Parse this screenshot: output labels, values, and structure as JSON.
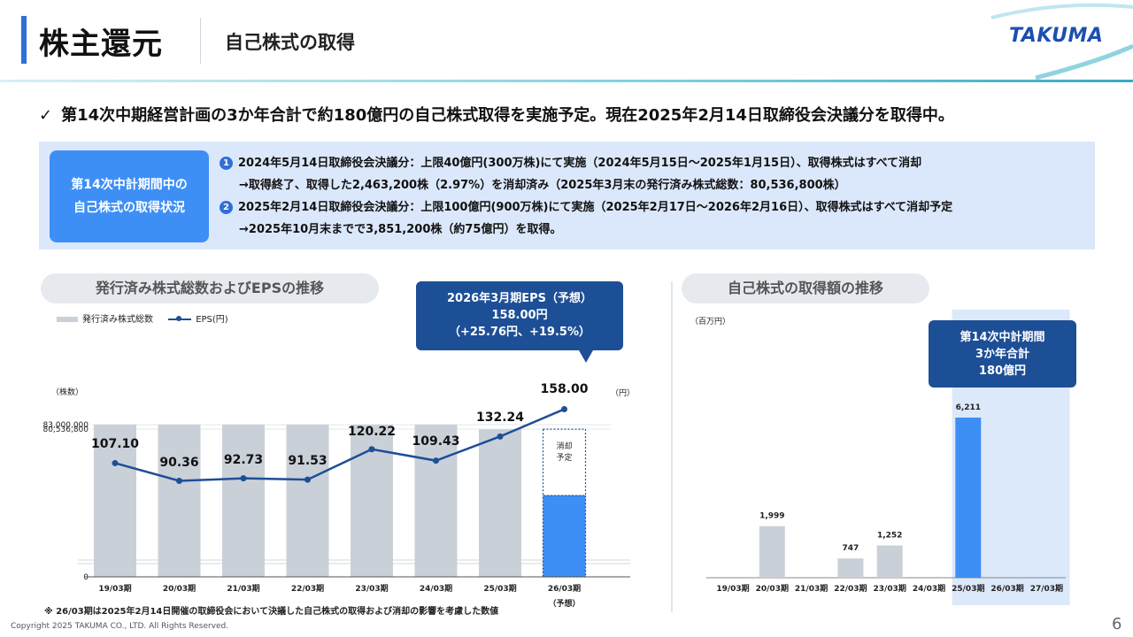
{
  "header": {
    "title": "株主還元",
    "subtitle": "自己株式の取得",
    "logo": "TAKUMA"
  },
  "summary": {
    "check": "✓",
    "text": "第14次中期経営計画の3か年合計で約180億円の自己株式取得を実施予定。現在2025年2月14日取締役会決議分を取得中。"
  },
  "status_box": {
    "tag_line1": "第14次中計期間中の",
    "tag_line2": "自己株式の取得状況",
    "items": [
      {
        "badge": "1",
        "line1": "2024年5月14日取締役会決議分：上限40億円(300万株)にて実施（2024年5月15日～2025年1月15日）、取得株式はすべて消却",
        "line2": "→取得終了、取得した2,463,200株（2.97%）を消却済み（2025年3月末の発行済み株式総数：80,536,800株）"
      },
      {
        "badge": "2",
        "line1": "2025年2月14日取締役会決議分：上限100億円(900万株)にて実施（2025年2月17日～2026年2月16日）、取得株式はすべて消却予定",
        "line2": "→2025年10月末までで3,851,200株（約75億円）を取得。"
      }
    ]
  },
  "left_section": {
    "pill": "発行済み株式総数およびEPSの推移",
    "legend_bar": "発行済み株式総数",
    "legend_line": "EPS(円)",
    "callout_line1": "2026年3月期EPS（予想）",
    "callout_line2": "158.00円",
    "callout_line3": "（+25.76円、+19.5%）",
    "footnote": "※ 26/03期は2025年2月14日開催の取締役会において決議した自己株式の取得および消却の影響を考慮した数値"
  },
  "right_section": {
    "pill": "自己株式の取得額の推移",
    "callout_line1": "第14次中計期間",
    "callout_line2": "3か年合計",
    "callout_line3": "180億円"
  },
  "chart_data": [
    {
      "type": "bar+line",
      "title": "発行済み株式総数およびEPSの推移",
      "categories": [
        "19/03期",
        "20/03期",
        "21/03期",
        "22/03期",
        "23/03期",
        "24/03期",
        "25/03期",
        "26/03期"
      ],
      "category_note": "（予想）",
      "ylabel_left": "（株数）",
      "ylabel_right": "（円）",
      "y_ticks_left": [
        "83,000,000",
        "80,536,800",
        "0"
      ],
      "series": [
        {
          "name": "発行済み株式総数",
          "type": "bar",
          "values": [
            83000000,
            83000000,
            83000000,
            83000000,
            83000000,
            83000000,
            80536800,
            80536800
          ],
          "last_split": {
            "solid_share": 0.55,
            "label_line1": "消却",
            "label_line2": "予定"
          }
        },
        {
          "name": "EPS(円)",
          "type": "line",
          "values": [
            107.1,
            90.36,
            92.73,
            91.53,
            120.22,
            109.43,
            132.24,
            158.0
          ],
          "labels": [
            "107.10",
            "90.36",
            "92.73",
            "91.53",
            "120.22",
            "109.43",
            "132.24",
            "158.00"
          ]
        }
      ],
      "colors": {
        "bar": "#c9d0d8",
        "bar_highlight": "#3d8ff5",
        "line": "#1d4f96"
      }
    },
    {
      "type": "bar",
      "title": "自己株式の取得額の推移",
      "unit": "（百万円）",
      "categories": [
        "19/03期",
        "20/03期",
        "21/03期",
        "22/03期",
        "23/03期",
        "24/03期",
        "25/03期",
        "26/03期",
        "27/03期"
      ],
      "values": [
        0,
        1999,
        0,
        747,
        1252,
        0,
        6211,
        0,
        0
      ],
      "labels": [
        "",
        "1,999",
        "",
        "747",
        "1,252",
        "",
        "6,211",
        "",
        ""
      ],
      "highlight_range": [
        "25/03期",
        "27/03期"
      ],
      "ylim": [
        0,
        7000
      ],
      "colors": {
        "bar": "#c9d0d8",
        "bar_highlight": "#3d8ff5",
        "band": "#dce9fb"
      }
    }
  ],
  "footer": {
    "copyright": "Copyright  2025 TAKUMA CO., LTD.  All Rights Reserved.",
    "page": "6"
  }
}
